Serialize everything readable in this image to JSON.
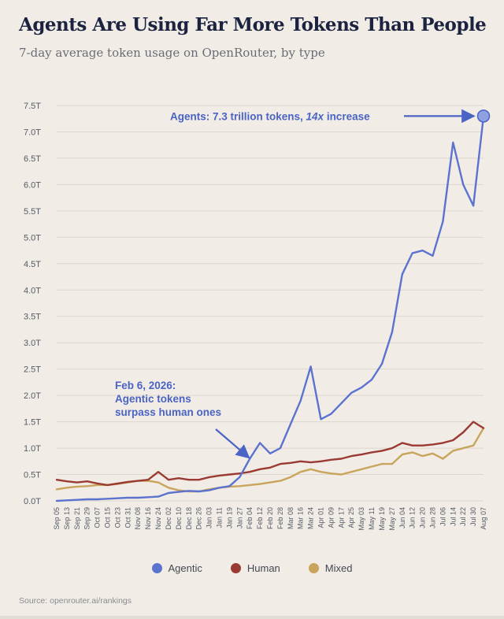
{
  "header": {
    "title": "Agents Are Using Far More Tokens Than People",
    "subtitle": "7-day average token usage on OpenRouter, by type"
  },
  "footer": {
    "source": "Source: openrouter.ai/rankings"
  },
  "colors": {
    "agentic": "#5b72cf",
    "human": "#9a3a32",
    "mixed": "#c9a45c",
    "annotation": "#4a63c4",
    "grid": "#dcd6cc"
  },
  "chart_data": {
    "type": "line",
    "unit": "trillion tokens",
    "ylim": [
      0,
      7.5
    ],
    "yticks": [
      0,
      0.5,
      1.0,
      1.5,
      2.0,
      2.5,
      3.0,
      3.5,
      4.0,
      4.5,
      5.0,
      5.5,
      6.0,
      6.5,
      7.0,
      7.5
    ],
    "ytick_labels": [
      "0.0T",
      "0.5T",
      "1.0T",
      "1.5T",
      "2.0T",
      "2.5T",
      "3.0T",
      "3.5T",
      "4.0T",
      "4.5T",
      "5.0T",
      "5.5T",
      "6.0T",
      "6.5T",
      "7.0T",
      "7.5T"
    ],
    "grid": true,
    "legend_position": "bottom-center",
    "x": [
      "Sep 05",
      "Sep 13",
      "Sep 21",
      "Sep 29",
      "Oct 07",
      "Oct 15",
      "Oct 23",
      "Oct 31",
      "Nov 08",
      "Nov 16",
      "Nov 24",
      "Dec 02",
      "Dec 10",
      "Dec 18",
      "Dec 26",
      "Jan 03",
      "Jan 11",
      "Jan 19",
      "Jan 27",
      "Feb 04",
      "Feb 12",
      "Feb 20",
      "Feb 28",
      "Mar 08",
      "Mar 16",
      "Mar 24",
      "Apr 01",
      "Apr 09",
      "Apr 17",
      "Apr 25",
      "May 03",
      "May 11",
      "May 19",
      "May 27",
      "Jun 04",
      "Jun 12",
      "Jun 20",
      "Jun 28",
      "Jul 06",
      "Jul 14",
      "Jul 22",
      "Jul 30",
      "Aug 07"
    ],
    "series": [
      {
        "name": "Agentic",
        "key": "agentic",
        "values": [
          0.0,
          0.01,
          0.02,
          0.03,
          0.03,
          0.04,
          0.05,
          0.06,
          0.06,
          0.07,
          0.08,
          0.15,
          0.17,
          0.19,
          0.18,
          0.2,
          0.25,
          0.28,
          0.45,
          0.8,
          1.1,
          0.9,
          1.0,
          1.45,
          1.9,
          2.55,
          1.55,
          1.65,
          1.85,
          2.05,
          2.15,
          2.3,
          2.6,
          3.2,
          4.3,
          4.7,
          4.75,
          4.65,
          5.3,
          6.8,
          6.0,
          5.6,
          7.3
        ]
      },
      {
        "name": "Human",
        "key": "human",
        "values": [
          0.4,
          0.37,
          0.35,
          0.37,
          0.33,
          0.3,
          0.33,
          0.36,
          0.38,
          0.4,
          0.55,
          0.4,
          0.43,
          0.4,
          0.4,
          0.45,
          0.48,
          0.5,
          0.52,
          0.55,
          0.6,
          0.63,
          0.7,
          0.72,
          0.75,
          0.73,
          0.75,
          0.78,
          0.8,
          0.85,
          0.88,
          0.92,
          0.95,
          1.0,
          1.1,
          1.05,
          1.05,
          1.07,
          1.1,
          1.15,
          1.3,
          1.5,
          1.38
        ]
      },
      {
        "name": "Mixed",
        "key": "mixed",
        "values": [
          0.22,
          0.25,
          0.27,
          0.28,
          0.3,
          0.3,
          0.32,
          0.35,
          0.38,
          0.38,
          0.35,
          0.25,
          0.2,
          0.18,
          0.18,
          0.22,
          0.25,
          0.27,
          0.28,
          0.3,
          0.32,
          0.35,
          0.38,
          0.45,
          0.55,
          0.6,
          0.55,
          0.52,
          0.5,
          0.55,
          0.6,
          0.65,
          0.7,
          0.7,
          0.88,
          0.92,
          0.85,
          0.9,
          0.8,
          0.95,
          1.0,
          1.05,
          1.38
        ]
      }
    ],
    "annotations": [
      {
        "key": "agents-peak",
        "text_bold": "Agents: 7.3 trillion tokens, ",
        "text_italic": "14x",
        "text_tail": " increase",
        "target_x": "Aug 07",
        "target_y": 7.3
      },
      {
        "key": "crossover",
        "lines": [
          "Feb 6, 2026:",
          "Agentic tokens",
          "surpass human ones"
        ],
        "target_x": "Feb 04",
        "target_y": 0.55
      }
    ]
  }
}
